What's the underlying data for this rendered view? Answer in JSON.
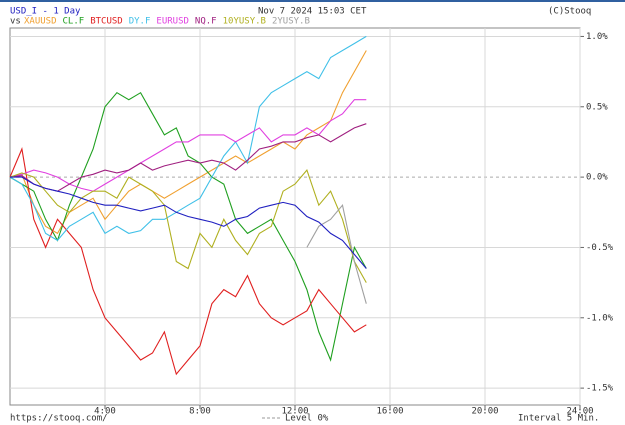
{
  "chart_data": {
    "type": "line",
    "title": "USD_I - 1 Day",
    "timestamp": "Nov 7 2024 15:03 CET",
    "copyright": "(C)Stooq",
    "vs_label": "vs",
    "footer_left": "https://stooq.com/",
    "footer_right": "Interval 5 Min.",
    "level": {
      "value": 0,
      "label": "Level 0%"
    },
    "grid": true,
    "xlim": [
      0,
      24
    ],
    "xticks": [
      {
        "value": 4,
        "label": "4:00"
      },
      {
        "value": 8,
        "label": "8:00"
      },
      {
        "value": 12,
        "label": "12:00"
      },
      {
        "value": 16,
        "label": "16:00"
      },
      {
        "value": 20,
        "label": "20:00"
      },
      {
        "value": 24,
        "label": "24:00"
      }
    ],
    "ylim": [
      -1.62,
      1.06
    ],
    "yticks": [
      {
        "value": 1.0,
        "label": "1.0%"
      },
      {
        "value": 0.5,
        "label": "0.5%"
      },
      {
        "value": 0,
        "label": "0.0%"
      },
      {
        "value": -0.5,
        "label": "-0.5%"
      },
      {
        "value": -1.0,
        "label": "-1.0%"
      },
      {
        "value": -1.5,
        "label": "-1.5%"
      }
    ],
    "x": [
      0,
      0.5,
      1,
      1.5,
      2,
      2.5,
      3,
      3.5,
      4,
      4.5,
      5,
      5.5,
      6,
      6.5,
      7,
      7.5,
      8,
      8.5,
      9,
      9.5,
      10,
      10.5,
      11,
      11.5,
      12,
      12.5,
      13,
      13.5,
      14,
      14.5,
      15
    ],
    "main_color": "#2020c0",
    "main_values": [
      0,
      0,
      -0.05,
      -0.08,
      -0.1,
      -0.12,
      -0.15,
      -0.18,
      -0.2,
      -0.2,
      -0.22,
      -0.24,
      -0.22,
      -0.2,
      -0.25,
      -0.28,
      -0.3,
      -0.32,
      -0.35,
      -0.3,
      -0.28,
      -0.22,
      -0.2,
      -0.18,
      -0.2,
      -0.28,
      -0.32,
      -0.4,
      -0.45,
      -0.55,
      -0.65
    ],
    "series": [
      {
        "name": "XAUUSD",
        "color": "#f0a030",
        "values": [
          0,
          0.02,
          -0.2,
          -0.35,
          -0.4,
          -0.25,
          -0.2,
          -0.15,
          -0.3,
          -0.2,
          -0.1,
          -0.05,
          -0.1,
          -0.15,
          -0.1,
          -0.05,
          0,
          0.05,
          0.1,
          0.15,
          0.1,
          0.15,
          0.2,
          0.25,
          0.2,
          0.3,
          0.35,
          0.4,
          0.6,
          0.75,
          0.9
        ]
      },
      {
        "name": "CL.F",
        "color": "#20a020",
        "values": [
          0,
          -0.05,
          -0.1,
          -0.3,
          -0.45,
          -0.2,
          0,
          0.2,
          0.5,
          0.6,
          0.55,
          0.6,
          0.45,
          0.3,
          0.35,
          0.15,
          0.1,
          0,
          -0.05,
          -0.3,
          -0.4,
          -0.35,
          -0.3,
          -0.45,
          -0.6,
          -0.8,
          -1.1,
          -1.3,
          -0.9,
          -0.5,
          -0.65
        ]
      },
      {
        "name": "BTCUSD",
        "color": "#e02020",
        "values": [
          0,
          0.2,
          -0.3,
          -0.5,
          -0.3,
          -0.4,
          -0.5,
          -0.8,
          -1.0,
          -1.1,
          -1.2,
          -1.3,
          -1.25,
          -1.1,
          -1.4,
          -1.3,
          -1.2,
          -0.9,
          -0.8,
          -0.85,
          -0.7,
          -0.9,
          -1.0,
          -1.05,
          -1.0,
          -0.95,
          -0.8,
          -0.9,
          -1.0,
          -1.1,
          -1.05
        ]
      },
      {
        "name": "DY.F",
        "color": "#40c0e8",
        "values": [
          0,
          -0.05,
          -0.2,
          -0.4,
          -0.45,
          -0.35,
          -0.3,
          -0.25,
          -0.4,
          -0.35,
          -0.4,
          -0.38,
          -0.3,
          -0.3,
          -0.25,
          -0.2,
          -0.15,
          0,
          0.15,
          0.25,
          0.1,
          0.5,
          0.6,
          0.65,
          0.7,
          0.75,
          0.7,
          0.85,
          0.9,
          0.95,
          1.0
        ]
      },
      {
        "name": "EURUSD",
        "color": "#e040e0",
        "values": [
          0,
          0.02,
          0.05,
          0.03,
          0,
          -0.05,
          -0.08,
          -0.1,
          -0.05,
          0,
          0.05,
          0.1,
          0.15,
          0.2,
          0.25,
          0.25,
          0.3,
          0.3,
          0.3,
          0.25,
          0.3,
          0.35,
          0.25,
          0.3,
          0.3,
          0.35,
          0.3,
          0.4,
          0.45,
          0.55,
          0.55
        ]
      },
      {
        "name": "NQ.F",
        "color": "#a02080",
        "values": [
          0,
          0.01,
          -0.05,
          -0.08,
          -0.1,
          -0.05,
          0,
          0.02,
          0.05,
          0.03,
          0.05,
          0.1,
          0.05,
          0.08,
          0.1,
          0.12,
          0.1,
          0.12,
          0.1,
          0.05,
          0.12,
          0.2,
          0.22,
          0.25,
          0.25,
          0.28,
          0.3,
          0.25,
          0.3,
          0.35,
          0.38
        ]
      },
      {
        "name": "10YUSY.B",
        "color": "#b0b020",
        "values": [
          0,
          0.03,
          0,
          -0.1,
          -0.2,
          -0.25,
          -0.15,
          -0.1,
          -0.1,
          -0.15,
          0,
          -0.05,
          -0.1,
          -0.2,
          -0.6,
          -0.65,
          -0.4,
          -0.5,
          -0.3,
          -0.45,
          -0.55,
          -0.4,
          -0.35,
          -0.1,
          -0.05,
          0.05,
          -0.2,
          -0.1,
          -0.3,
          -0.6,
          -0.75
        ]
      },
      {
        "name": "2YUSY.B",
        "color": "#a0a0a0",
        "values": [
          null,
          null,
          null,
          null,
          null,
          null,
          null,
          null,
          null,
          null,
          null,
          null,
          null,
          null,
          null,
          null,
          null,
          null,
          null,
          null,
          null,
          null,
          null,
          null,
          null,
          -0.5,
          -0.35,
          -0.3,
          -0.2,
          -0.6,
          -0.9
        ]
      }
    ]
  }
}
